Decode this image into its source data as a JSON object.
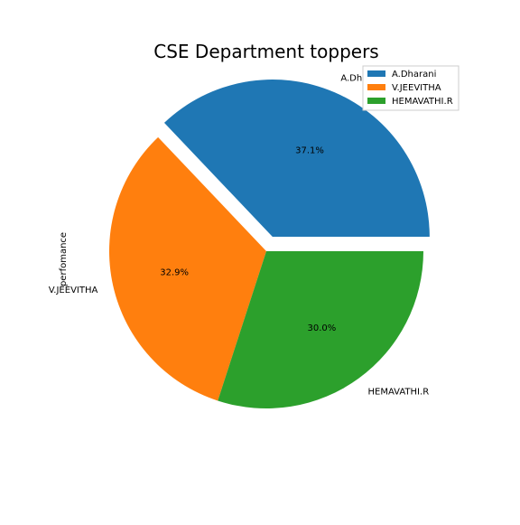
{
  "chart_data": {
    "type": "pie",
    "title": "CSE Department toppers",
    "ylabel": "perfomance",
    "slices": [
      {
        "label": "A.Dharani",
        "value": 37.1,
        "pct_label": "37.1%",
        "color": "#1f77b4",
        "exploded": true
      },
      {
        "label": "V.JEEVITHA",
        "value": 32.9,
        "pct_label": "32.9%",
        "color": "#ff7f0e",
        "exploded": false
      },
      {
        "label": "HEMAVATHI.R",
        "value": 30.0,
        "pct_label": "30.0%",
        "color": "#2ca02c",
        "exploded": false
      }
    ],
    "start_angle_deg": 0,
    "direction": "counterclockwise",
    "legend": {
      "placement": "top-right",
      "entries": [
        "A.Dharani",
        "V.JEEVITHA",
        "HEMAVATHI.R"
      ]
    }
  }
}
